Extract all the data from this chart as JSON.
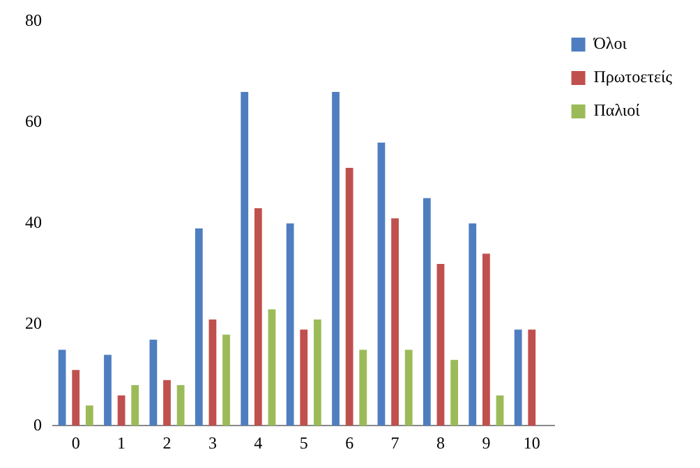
{
  "chart_data": {
    "type": "bar",
    "categories": [
      "0",
      "1",
      "2",
      "3",
      "4",
      "5",
      "6",
      "7",
      "8",
      "9",
      "10"
    ],
    "series": [
      {
        "name": "Όλοι",
        "color": "#4f7ec0",
        "values": [
          15,
          14,
          17,
          39,
          66,
          40,
          66,
          56,
          45,
          40,
          19
        ]
      },
      {
        "name": "Πρωτοετείς",
        "color": "#c0504d",
        "values": [
          11,
          6,
          9,
          21,
          43,
          19,
          51,
          41,
          32,
          34,
          19
        ]
      },
      {
        "name": "Παλιοί",
        "color": "#9bbb59",
        "values": [
          4,
          8,
          8,
          18,
          23,
          21,
          15,
          15,
          13,
          6,
          null
        ]
      }
    ],
    "ylim": [
      0,
      80
    ],
    "yticks": [
      0,
      20,
      40,
      60,
      80
    ],
    "grid": false,
    "legend": "top right"
  }
}
